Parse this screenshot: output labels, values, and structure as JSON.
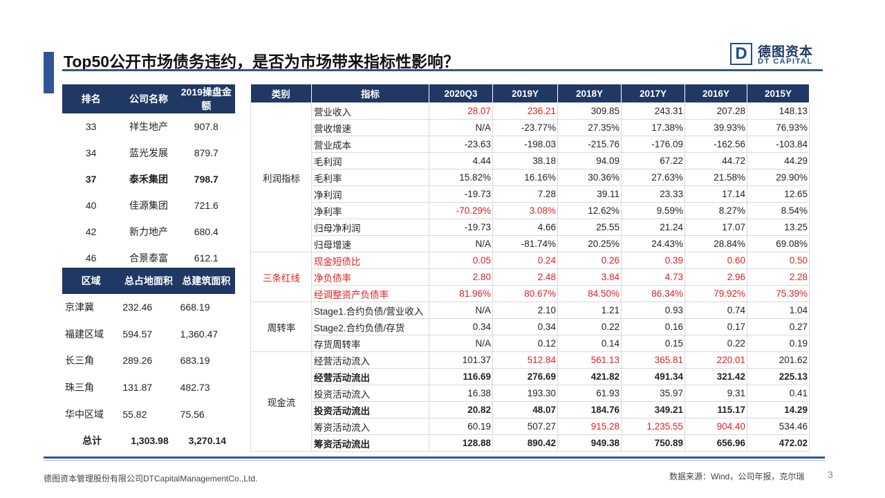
{
  "header": {
    "title": "Top50公开市场债务违约，是否为市场带来指标性影响？",
    "logo_cn": "德图资本",
    "logo_en": "DT CAPITAL",
    "logo_mark": "D"
  },
  "left_table_1": {
    "headers": [
      "排名",
      "公司名称",
      "2019操盘金额"
    ],
    "rows": [
      {
        "cells": [
          "33",
          "祥生地产",
          "907.8"
        ]
      },
      {
        "cells": [
          "34",
          "蓝光发展",
          "879.7"
        ]
      },
      {
        "cells": [
          "37",
          "泰禾集团",
          "798.7"
        ],
        "bold": true
      },
      {
        "cells": [
          "40",
          "佳源集团",
          "721.6"
        ]
      },
      {
        "cells": [
          "42",
          "新力地产",
          "680.4"
        ]
      },
      {
        "cells": [
          "46",
          "合景泰富",
          "612.1"
        ]
      }
    ]
  },
  "left_table_2": {
    "headers": [
      "区域",
      "总占地面积",
      "总建筑面积"
    ],
    "rows": [
      {
        "cells": [
          "京津冀",
          "232.46",
          "668.19"
        ]
      },
      {
        "cells": [
          "福建区域",
          "594.57",
          "1,360.47"
        ]
      },
      {
        "cells": [
          "长三角",
          "289.26",
          "683.19"
        ]
      },
      {
        "cells": [
          "珠三角",
          "131.87",
          "482.73"
        ]
      },
      {
        "cells": [
          "华中区域",
          "55.82",
          "75.56"
        ]
      },
      {
        "cells": [
          "总计",
          "1,303.98",
          "3,270.14"
        ],
        "bold": true
      }
    ]
  },
  "main_table": {
    "headers": [
      "类别",
      "指标",
      "2020Q3",
      "2019Y",
      "2018Y",
      "2017Y",
      "2016Y",
      "2015Y"
    ],
    "red_color": "#e02020",
    "groups": [
      {
        "category": "利润指标",
        "rows": [
          {
            "label": "营业收入",
            "values": [
              "28.07",
              "236.21",
              "309.85",
              "243.31",
              "207.28",
              "148.13"
            ],
            "red_cells": [
              0,
              1
            ]
          },
          {
            "label": "营收增速",
            "values": [
              "N/A",
              "-23.77%",
              "27.35%",
              "17.38%",
              "39.93%",
              "76.93%"
            ]
          },
          {
            "label": "营业成本",
            "values": [
              "-23.63",
              "-198.03",
              "-215.76",
              "-176.09",
              "-162.56",
              "-103.84"
            ]
          },
          {
            "label": "毛利润",
            "values": [
              "4.44",
              "38.18",
              "94.09",
              "67.22",
              "44.72",
              "44.29"
            ]
          },
          {
            "label": "毛利率",
            "values": [
              "15.82%",
              "16.16%",
              "30.36%",
              "27.63%",
              "21.58%",
              "29.90%"
            ]
          },
          {
            "label": "净利润",
            "values": [
              "-19.73",
              "7.28",
              "39.11",
              "23.33",
              "17.14",
              "12.65"
            ]
          },
          {
            "label": "净利率",
            "values": [
              "-70.29%",
              "3.08%",
              "12.62%",
              "9.59%",
              "8.27%",
              "8.54%"
            ],
            "red_cells": [
              0,
              1
            ]
          },
          {
            "label": "归母净利润",
            "values": [
              "-19.73",
              "4.66",
              "25.55",
              "21.24",
              "17.07",
              "13.25"
            ]
          },
          {
            "label": "归母增速",
            "values": [
              "N/A",
              "-81.74%",
              "20.25%",
              "24.43%",
              "28.84%",
              "69.08%"
            ]
          }
        ]
      },
      {
        "category": "三条红线",
        "red": true,
        "rows": [
          {
            "label": "现金短债比",
            "values": [
              "0.05",
              "0.24",
              "0.26",
              "0.39",
              "0.60",
              "0.50"
            ]
          },
          {
            "label": "净负债率",
            "values": [
              "2.80",
              "2.48",
              "3.84",
              "4.73",
              "2.96",
              "2.28"
            ]
          },
          {
            "label": "经调整资产负债率",
            "values": [
              "81.96%",
              "80.67%",
              "84.50%",
              "86.34%",
              "79.92%",
              "75.39%"
            ]
          }
        ]
      },
      {
        "category": "周转率",
        "rows": [
          {
            "label": "Stage1.合约负债/营业收入",
            "values": [
              "N/A",
              "2.10",
              "1.21",
              "0.93",
              "0.74",
              "1.04"
            ]
          },
          {
            "label": "Stage2.合约负债/存货",
            "values": [
              "0.34",
              "0.34",
              "0.22",
              "0.16",
              "0.17",
              "0.27"
            ]
          },
          {
            "label": "存货周转率",
            "values": [
              "N/A",
              "0.12",
              "0.14",
              "0.15",
              "0.22",
              "0.19"
            ]
          }
        ]
      },
      {
        "category": "现金流",
        "rows": [
          {
            "label": "经营活动流入",
            "values": [
              "101.37",
              "512.84",
              "561.13",
              "365.81",
              "220.01",
              "201.62"
            ],
            "red_cells": [
              1,
              2,
              3,
              4
            ]
          },
          {
            "label": "经营活动流出",
            "values": [
              "116.69",
              "276.69",
              "421.82",
              "491.34",
              "321.42",
              "225.13"
            ],
            "bold": true
          },
          {
            "label": "投资活动流入",
            "values": [
              "16.38",
              "193.30",
              "61.93",
              "35.97",
              "9.31",
              "0.41"
            ]
          },
          {
            "label": "投资活动流出",
            "values": [
              "20.82",
              "48.07",
              "184.76",
              "349.21",
              "115.17",
              "14.29"
            ],
            "bold": true
          },
          {
            "label": "筹资活动流入",
            "values": [
              "60.19",
              "507.27",
              "915.28",
              "1,235.55",
              "904.40",
              "534.46"
            ],
            "red_cells": [
              2,
              3,
              4
            ]
          },
          {
            "label": "筹资活动流出",
            "values": [
              "128.88",
              "890.42",
              "949.38",
              "750.89",
              "656.96",
              "472.02"
            ],
            "bold": true
          }
        ]
      }
    ]
  },
  "footer": {
    "company": "德图资本管理股份有限公司DTCapitalManagementCo.,Ltd.",
    "source": "数据来源：Wind，公司年报，克尔瑞",
    "page": "3"
  }
}
